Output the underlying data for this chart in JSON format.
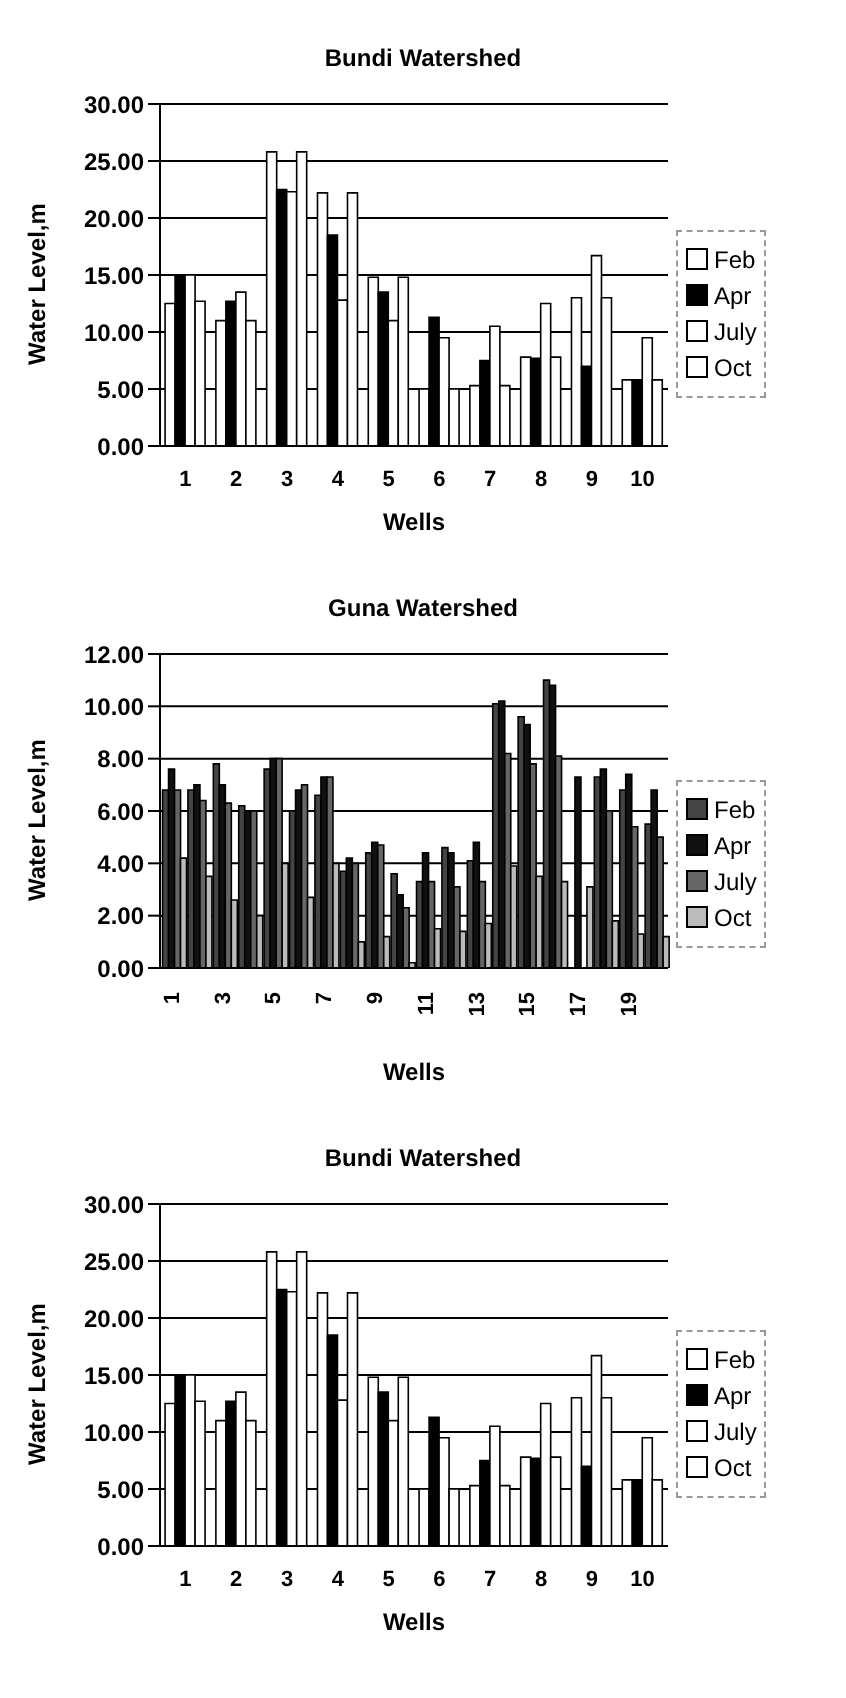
{
  "chart_data": [
    {
      "type": "bar",
      "title": "Bundi Watershed",
      "xlabel": "Wells",
      "ylabel": "Water Level,m",
      "categories": [
        "1",
        "2",
        "3",
        "4",
        "5",
        "6",
        "7",
        "8",
        "9",
        "10"
      ],
      "series": [
        {
          "name": "Feb",
          "color": "#ffffff",
          "values": [
            12.5,
            11,
            25.8,
            22.2,
            14.8,
            5,
            5.3,
            7.8,
            13,
            5.8
          ]
        },
        {
          "name": "Apr",
          "color": "#000000",
          "values": [
            15,
            12.7,
            22.5,
            18.5,
            13.5,
            11.3,
            7.5,
            7.7,
            7,
            5.8
          ]
        },
        {
          "name": "July",
          "color": "#ffffff",
          "values": [
            15,
            13.5,
            22.3,
            12.8,
            11,
            9.5,
            10.5,
            12.5,
            16.7,
            9.5
          ]
        },
        {
          "name": "Oct",
          "color": "#ffffff",
          "values": [
            12.7,
            11,
            25.8,
            22.2,
            14.8,
            5,
            5.3,
            7.8,
            13,
            5.8
          ]
        }
      ],
      "ylim": [
        0,
        30
      ],
      "yticks": [
        {
          "value": 0,
          "label": "0.00"
        },
        {
          "value": 5,
          "label": "5.00"
        },
        {
          "value": 10,
          "label": "10.00"
        },
        {
          "value": 15,
          "label": "15.00"
        },
        {
          "value": 20,
          "label": "20.00"
        },
        {
          "value": 25,
          "label": "25.00"
        },
        {
          "value": 30,
          "label": "30.00"
        }
      ],
      "grid": "y",
      "legend": "right"
    },
    {
      "type": "bar",
      "title": "Guna Watershed",
      "xlabel": "Wells",
      "ylabel": "Water Level,m",
      "categories": [
        "1",
        null,
        "3",
        null,
        "5",
        null,
        "7",
        null,
        "9",
        null,
        "11",
        null,
        "13",
        null,
        "15",
        null,
        "17",
        null,
        "19",
        null
      ],
      "series": [
        {
          "name": "Feb",
          "color": "#444444",
          "values": [
            6.8,
            6.8,
            7.8,
            6.2,
            7.6,
            6.0,
            6.6,
            3.7,
            4.4,
            3.6,
            3.3,
            4.6,
            4.1,
            10.1,
            9.6,
            11.0,
            null,
            7.3,
            6.8,
            5.5
          ]
        },
        {
          "name": "Apr",
          "color": "#111111",
          "values": [
            7.6,
            7.0,
            7.0,
            6.0,
            8.0,
            6.8,
            7.3,
            4.2,
            4.8,
            2.8,
            4.4,
            4.4,
            4.8,
            10.2,
            9.3,
            10.8,
            7.3,
            7.6,
            7.4,
            6.8
          ]
        },
        {
          "name": "July",
          "color": "#666666",
          "values": [
            6.8,
            6.4,
            6.3,
            6.0,
            8.0,
            7.0,
            7.3,
            4.0,
            4.7,
            2.3,
            3.3,
            3.1,
            3.3,
            8.2,
            7.8,
            8.1,
            null,
            6.0,
            5.4,
            5.0
          ]
        },
        {
          "name": "Oct",
          "color": "#bbbbbb",
          "values": [
            4.2,
            3.5,
            2.6,
            2.0,
            4.0,
            2.7,
            4.0,
            1.0,
            1.2,
            0.2,
            1.5,
            1.4,
            1.7,
            3.9,
            3.5,
            3.3,
            3.1,
            1.8,
            1.3,
            1.2
          ]
        }
      ],
      "ylim": [
        0,
        12
      ],
      "yticks": [
        {
          "value": 0,
          "label": "0.00"
        },
        {
          "value": 2,
          "label": "2.00"
        },
        {
          "value": 4,
          "label": "4.00"
        },
        {
          "value": 6,
          "label": "6.00"
        },
        {
          "value": 8,
          "label": "8.00"
        },
        {
          "value": 10,
          "label": "10.00"
        },
        {
          "value": 12,
          "label": "12.00"
        }
      ],
      "grid": "y",
      "legend": "right"
    },
    {
      "type": "bar",
      "title": "Bundi Watershed",
      "xlabel": "Wells",
      "ylabel": "Water Level,m",
      "categories": [
        "1",
        "2",
        "3",
        "4",
        "5",
        "6",
        "7",
        "8",
        "9",
        "10"
      ],
      "series": [
        {
          "name": "Feb",
          "color": "#ffffff",
          "values": [
            12.5,
            11,
            25.8,
            22.2,
            14.8,
            5,
            5.3,
            7.8,
            13,
            5.8
          ]
        },
        {
          "name": "Apr",
          "color": "#000000",
          "values": [
            15,
            12.7,
            22.5,
            18.5,
            13.5,
            11.3,
            7.5,
            7.7,
            7,
            5.8
          ]
        },
        {
          "name": "July",
          "color": "#ffffff",
          "values": [
            15,
            13.5,
            22.3,
            12.8,
            11,
            9.5,
            10.5,
            12.5,
            16.7,
            9.5
          ]
        },
        {
          "name": "Oct",
          "color": "#ffffff",
          "values": [
            12.7,
            11,
            25.8,
            22.2,
            14.8,
            5,
            5.3,
            7.8,
            13,
            5.8
          ]
        }
      ],
      "ylim": [
        0,
        30
      ],
      "yticks": [
        {
          "value": 0,
          "label": "0.00"
        },
        {
          "value": 5,
          "label": "5.00"
        },
        {
          "value": 10,
          "label": "10.00"
        },
        {
          "value": 15,
          "label": "15.00"
        },
        {
          "value": 20,
          "label": "20.00"
        },
        {
          "value": 25,
          "label": "25.00"
        },
        {
          "value": 30,
          "label": "30.00"
        }
      ],
      "grid": "y",
      "legend": "right"
    }
  ]
}
